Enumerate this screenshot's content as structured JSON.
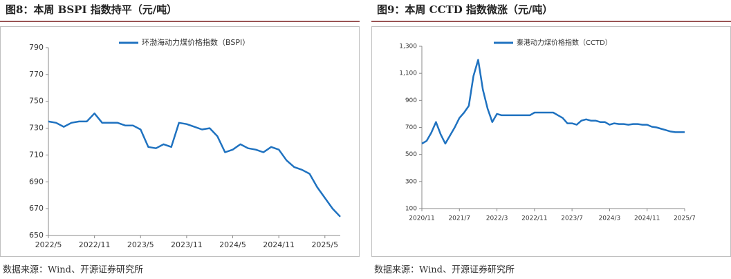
{
  "chart_data": [
    {
      "type": "line",
      "title": "图8：本周 BSPI 指数持平（元/吨）",
      "source": "数据来源：Wind、开源证券研究所",
      "x": [
        "2022/5",
        "2022/6",
        "2022/7",
        "2022/8",
        "2022/9",
        "2022/10",
        "2022/11",
        "2022/12",
        "2023/1",
        "2023/2",
        "2023/3",
        "2023/4",
        "2023/5",
        "2023/6",
        "2023/7",
        "2023/8",
        "2023/9",
        "2023/10",
        "2023/11",
        "2023/12",
        "2024/1",
        "2024/2",
        "2024/3",
        "2024/4",
        "2024/5",
        "2024/6",
        "2024/7",
        "2024/8",
        "2024/9",
        "2024/10",
        "2024/11",
        "2024/12",
        "2025/1",
        "2025/2",
        "2025/3",
        "2025/4",
        "2025/5",
        "2025/6",
        "2025/7"
      ],
      "series": [
        {
          "name": "环渤海动力煤价格指数（BSPI）",
          "color": "#1f72c0",
          "values": [
            735,
            734,
            731,
            734,
            735,
            735,
            741,
            734,
            734,
            734,
            732,
            732,
            729,
            716,
            715,
            718,
            716,
            734,
            733,
            731,
            729,
            730,
            724,
            712,
            714,
            718,
            715,
            714,
            712,
            716,
            714,
            706,
            701,
            699,
            696,
            686,
            678,
            670,
            664
          ]
        }
      ],
      "xlim": [
        "2022/5",
        "2025/7"
      ],
      "xticks": [
        "2022/5",
        "2022/11",
        "2023/5",
        "2023/11",
        "2024/5",
        "2024/11",
        "2025/5"
      ],
      "ylim": [
        650,
        790
      ],
      "yticks": [
        650,
        670,
        690,
        710,
        730,
        750,
        770,
        790
      ],
      "grid": false,
      "legend": "top"
    },
    {
      "type": "line",
      "title": "图9：本周 CCTD 指数微涨（元/吨）",
      "source": "数据来源：Wind、开源证券研究所",
      "x": [
        "2020/11",
        "2020/12",
        "2021/1",
        "2021/2",
        "2021/3",
        "2021/4",
        "2021/5",
        "2021/6",
        "2021/7",
        "2021/8",
        "2021/9",
        "2021/10",
        "2021/11",
        "2021/12",
        "2022/1",
        "2022/2",
        "2022/3",
        "2022/4",
        "2022/5",
        "2022/6",
        "2022/7",
        "2022/8",
        "2022/9",
        "2022/10",
        "2022/11",
        "2022/12",
        "2023/1",
        "2023/2",
        "2023/3",
        "2023/4",
        "2023/5",
        "2023/6",
        "2023/7",
        "2023/8",
        "2023/9",
        "2023/10",
        "2023/11",
        "2023/12",
        "2024/1",
        "2024/2",
        "2024/3",
        "2024/4",
        "2024/5",
        "2024/6",
        "2024/7",
        "2024/8",
        "2024/9",
        "2024/10",
        "2024/11",
        "2024/12",
        "2025/1",
        "2025/2",
        "2025/3",
        "2025/4",
        "2025/5",
        "2025/6",
        "2025/7"
      ],
      "series": [
        {
          "name": "秦港动力煤价格指数（CCTD）",
          "color": "#1f72c0",
          "values": [
            580,
            600,
            660,
            740,
            650,
            580,
            640,
            700,
            770,
            810,
            860,
            1080,
            1200,
            980,
            840,
            740,
            800,
            790,
            790,
            790,
            790,
            790,
            790,
            790,
            810,
            810,
            810,
            810,
            810,
            790,
            770,
            730,
            730,
            720,
            750,
            760,
            750,
            750,
            740,
            740,
            720,
            730,
            725,
            725,
            720,
            725,
            725,
            720,
            720,
            705,
            700,
            690,
            680,
            670,
            665,
            665,
            665
          ]
        }
      ],
      "xlim": [
        "2020/11",
        "2025/7"
      ],
      "xticks": [
        "2020/11",
        "2021/7",
        "2022/3",
        "2022/11",
        "2023/7",
        "2024/3",
        "2024/11",
        "2025/7"
      ],
      "ylim": [
        100,
        1300
      ],
      "yticks": [
        100,
        300,
        500,
        700,
        900,
        {
          "value": 1100,
          "label": "1,100"
        },
        {
          "value": 1300,
          "label": "1,300"
        }
      ],
      "grid": false,
      "legend": "top"
    }
  ]
}
